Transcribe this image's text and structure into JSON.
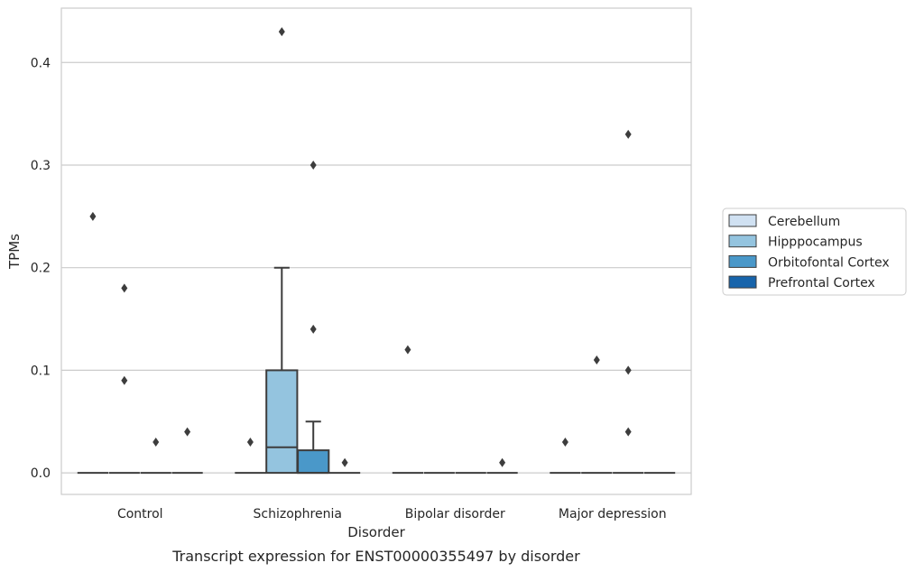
{
  "caption": "Transcript expression for ENST00000355497 by disorder",
  "chart_data": {
    "type": "box",
    "xlabel": "Disorder",
    "ylabel": "TPMs",
    "ylim": [
      -0.021,
      0.453
    ],
    "yticks": [
      0.0,
      0.1,
      0.2,
      0.3,
      0.4
    ],
    "ytick_labels": [
      "0.0",
      "0.1",
      "0.2",
      "0.3",
      "0.4"
    ],
    "grid": "horizontal",
    "legend_position": "right",
    "categories": [
      "Control",
      "Schizophrenia",
      "Bipolar disorder",
      "Major depression"
    ],
    "series": [
      {
        "name": "Cerebellum",
        "color": "#d0e1f2",
        "boxes": [
          {
            "category": "Control",
            "q1": 0.0,
            "median": 0.0,
            "q3": 0.0,
            "whisker_low": 0.0,
            "whisker_high": 0.0,
            "outliers": [
              0.25
            ]
          },
          {
            "category": "Schizophrenia",
            "q1": 0.0,
            "median": 0.0,
            "q3": 0.0,
            "whisker_low": 0.0,
            "whisker_high": 0.0,
            "outliers": [
              0.03
            ]
          },
          {
            "category": "Bipolar disorder",
            "q1": 0.0,
            "median": 0.0,
            "q3": 0.0,
            "whisker_low": 0.0,
            "whisker_high": 0.0,
            "outliers": [
              0.12
            ]
          },
          {
            "category": "Major depression",
            "q1": 0.0,
            "median": 0.0,
            "q3": 0.0,
            "whisker_low": 0.0,
            "whisker_high": 0.0,
            "outliers": [
              0.03
            ]
          }
        ]
      },
      {
        "name": "Hipppocampus",
        "color": "#94c4df",
        "boxes": [
          {
            "category": "Control",
            "q1": 0.0,
            "median": 0.0,
            "q3": 0.0,
            "whisker_low": 0.0,
            "whisker_high": 0.0,
            "outliers": [
              0.18,
              0.09
            ]
          },
          {
            "category": "Schizophrenia",
            "q1": 0.0,
            "median": 0.025,
            "q3": 0.1,
            "whisker_low": 0.0,
            "whisker_high": 0.2,
            "outliers": [
              0.43
            ]
          },
          {
            "category": "Bipolar disorder",
            "q1": 0.0,
            "median": 0.0,
            "q3": 0.0,
            "whisker_low": 0.0,
            "whisker_high": 0.0,
            "outliers": []
          },
          {
            "category": "Major depression",
            "q1": 0.0,
            "median": 0.0,
            "q3": 0.0,
            "whisker_low": 0.0,
            "whisker_high": 0.0,
            "outliers": [
              0.11
            ]
          }
        ]
      },
      {
        "name": "Orbitofontal Cortex",
        "color": "#4a98c9",
        "boxes": [
          {
            "category": "Control",
            "q1": 0.0,
            "median": 0.0,
            "q3": 0.0,
            "whisker_low": 0.0,
            "whisker_high": 0.0,
            "outliers": [
              0.03
            ]
          },
          {
            "category": "Schizophrenia",
            "q1": 0.0,
            "median": 0.0,
            "q3": 0.022,
            "whisker_low": 0.0,
            "whisker_high": 0.05,
            "outliers": [
              0.3,
              0.14
            ]
          },
          {
            "category": "Bipolar disorder",
            "q1": 0.0,
            "median": 0.0,
            "q3": 0.0,
            "whisker_low": 0.0,
            "whisker_high": 0.0,
            "outliers": []
          },
          {
            "category": "Major depression",
            "q1": 0.0,
            "median": 0.0,
            "q3": 0.0,
            "whisker_low": 0.0,
            "whisker_high": 0.0,
            "outliers": [
              0.33,
              0.1,
              0.04
            ]
          }
        ]
      },
      {
        "name": "Prefrontal Cortex",
        "color": "#1764ab",
        "boxes": [
          {
            "category": "Control",
            "q1": 0.0,
            "median": 0.0,
            "q3": 0.0,
            "whisker_low": 0.0,
            "whisker_high": 0.0,
            "outliers": [
              0.04
            ]
          },
          {
            "category": "Schizophrenia",
            "q1": 0.0,
            "median": 0.0,
            "q3": 0.0,
            "whisker_low": 0.0,
            "whisker_high": 0.0,
            "outliers": [
              0.01
            ]
          },
          {
            "category": "Bipolar disorder",
            "q1": 0.0,
            "median": 0.0,
            "q3": 0.0,
            "whisker_low": 0.0,
            "whisker_high": 0.0,
            "outliers": [
              0.01
            ]
          },
          {
            "category": "Major depression",
            "q1": 0.0,
            "median": 0.0,
            "q3": 0.0,
            "whisker_low": 0.0,
            "whisker_high": 0.0,
            "outliers": []
          }
        ]
      }
    ]
  }
}
